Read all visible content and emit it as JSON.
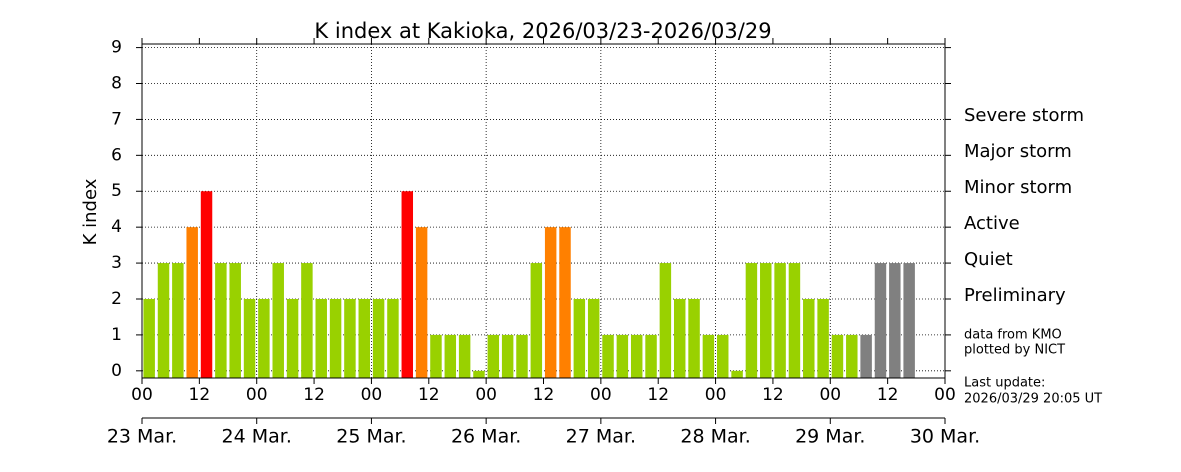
{
  "chart_data": {
    "type": "bar",
    "title": "K index at Kakioka, 2026/03/23-2026/03/29",
    "y_label": "K index",
    "x": [
      1.5,
      4.5,
      7.5,
      10.5,
      13.5,
      16.5,
      19.5,
      22.5,
      25.5,
      28.5,
      31.5,
      34.5,
      37.5,
      40.5,
      43.5,
      46.5,
      49.5,
      52.5,
      55.5,
      58.5,
      61.5,
      64.5,
      67.5,
      70.5,
      73.5,
      76.5,
      79.5,
      82.5,
      85.5,
      88.5,
      91.5,
      94.5,
      97.5,
      100.5,
      103.5,
      106.5,
      109.5,
      112.5,
      115.5,
      118.5,
      121.5,
      124.5,
      127.5,
      130.5,
      133.5,
      136.5,
      139.5,
      142.5,
      145.5,
      148.5,
      151.5,
      154.5,
      157.5,
      160.5
    ],
    "values": [
      2,
      3,
      3,
      4,
      5,
      3,
      3,
      2,
      2,
      3,
      2,
      3,
      2,
      2,
      2,
      2,
      2,
      2,
      5,
      4,
      1,
      1,
      1,
      0,
      1,
      1,
      1,
      3,
      4,
      4,
      2,
      2,
      1,
      1,
      1,
      1,
      3,
      2,
      2,
      1,
      1,
      0,
      3,
      3,
      3,
      3,
      2,
      2,
      1,
      1,
      1,
      3,
      3,
      3
    ],
    "colors": [
      "#99d100",
      "#99d100",
      "#99d100",
      "#ff8000",
      "#ff0000",
      "#99d100",
      "#99d100",
      "#99d100",
      "#99d100",
      "#99d100",
      "#99d100",
      "#99d100",
      "#99d100",
      "#99d100",
      "#99d100",
      "#99d100",
      "#99d100",
      "#99d100",
      "#ff0000",
      "#ff8000",
      "#99d100",
      "#99d100",
      "#99d100",
      "#99d100",
      "#99d100",
      "#99d100",
      "#99d100",
      "#99d100",
      "#ff8000",
      "#ff8000",
      "#99d100",
      "#99d100",
      "#99d100",
      "#99d100",
      "#99d100",
      "#99d100",
      "#99d100",
      "#99d100",
      "#99d100",
      "#99d100",
      "#99d100",
      "#99d100",
      "#99d100",
      "#99d100",
      "#99d100",
      "#99d100",
      "#99d100",
      "#99d100",
      "#99d100",
      "#99d100",
      "#808080",
      "#808080",
      "#808080",
      "#808080"
    ],
    "xlim": [
      0,
      168
    ],
    "ylim": [
      -0.2,
      9.1
    ],
    "yticks": [
      0,
      1,
      2,
      3,
      4,
      5,
      6,
      7,
      8,
      9
    ],
    "xticks": [
      {
        "value": 0,
        "label": "00"
      },
      {
        "value": 12,
        "label": "12"
      },
      {
        "value": 24,
        "label": "00"
      },
      {
        "value": 36,
        "label": "12"
      },
      {
        "value": 48,
        "label": "00"
      },
      {
        "value": 60,
        "label": "12"
      },
      {
        "value": 72,
        "label": "00"
      },
      {
        "value": 84,
        "label": "12"
      },
      {
        "value": 96,
        "label": "00"
      },
      {
        "value": 108,
        "label": "12"
      },
      {
        "value": 120,
        "label": "00"
      },
      {
        "value": 132,
        "label": "12"
      },
      {
        "value": 144,
        "label": "00"
      },
      {
        "value": 156,
        "label": "12"
      },
      {
        "value": 168,
        "label": "00"
      }
    ],
    "dateticks": [
      {
        "value": 0,
        "label": "23 Mar."
      },
      {
        "value": 24,
        "label": "24 Mar."
      },
      {
        "value": 48,
        "label": "25 Mar."
      },
      {
        "value": 72,
        "label": "26 Mar."
      },
      {
        "value": 96,
        "label": "27 Mar."
      },
      {
        "value": 120,
        "label": "28 Mar."
      },
      {
        "value": 144,
        "label": "29 Mar."
      },
      {
        "value": 168,
        "label": "30 Mar."
      }
    ],
    "grid": true,
    "legend": [
      {
        "label": "Severe storm",
        "color": "#9900cc"
      },
      {
        "label": "Major storm",
        "color": "#ee0088"
      },
      {
        "label": "Minor storm",
        "color": "#ff0000"
      },
      {
        "label": "Active",
        "color": "#ff8000"
      },
      {
        "label": "Quiet",
        "color": "#99d100"
      },
      {
        "label": "Preliminary",
        "color": "#808080"
      }
    ],
    "notes": [
      "data from KMO",
      "plotted by NICT"
    ],
    "update": [
      "Last update:",
      "2026/03/29 20:05 UT"
    ]
  }
}
